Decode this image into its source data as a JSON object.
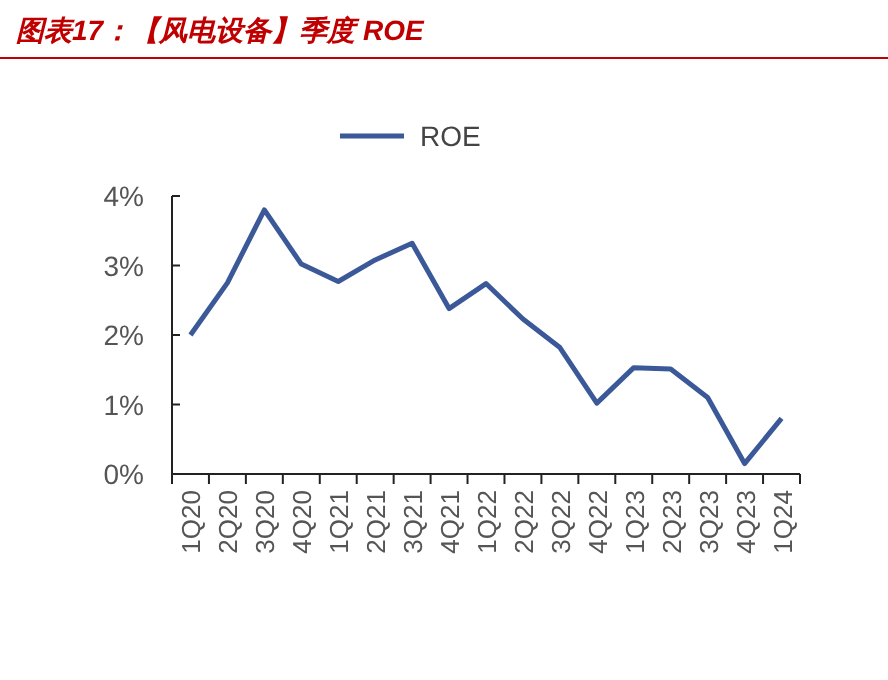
{
  "chart_data": {
    "type": "line",
    "title": "图表17：【风电设备】季度 ROE",
    "categories": [
      "1Q20",
      "2Q20",
      "3Q20",
      "4Q20",
      "1Q21",
      "2Q21",
      "3Q21",
      "4Q21",
      "1Q22",
      "2Q22",
      "3Q22",
      "4Q22",
      "1Q23",
      "2Q23",
      "3Q23",
      "4Q23",
      "1Q24"
    ],
    "series": [
      {
        "name": "ROE",
        "color": "#3b5998",
        "values": [
          2.0,
          2.75,
          3.8,
          3.02,
          2.77,
          3.08,
          3.32,
          2.38,
          2.74,
          2.23,
          1.82,
          1.02,
          1.53,
          1.51,
          1.1,
          0.15,
          0.8
        ]
      }
    ],
    "ylim": [
      0,
      4
    ],
    "yticks": [
      {
        "value": 0,
        "label": "0%"
      },
      {
        "value": 1,
        "label": "1%"
      },
      {
        "value": 2,
        "label": "2%"
      },
      {
        "value": 3,
        "label": "3%"
      },
      {
        "value": 4,
        "label": "4%"
      }
    ],
    "grid": false,
    "legend": "top",
    "marker": "none",
    "line_style": "solid"
  }
}
